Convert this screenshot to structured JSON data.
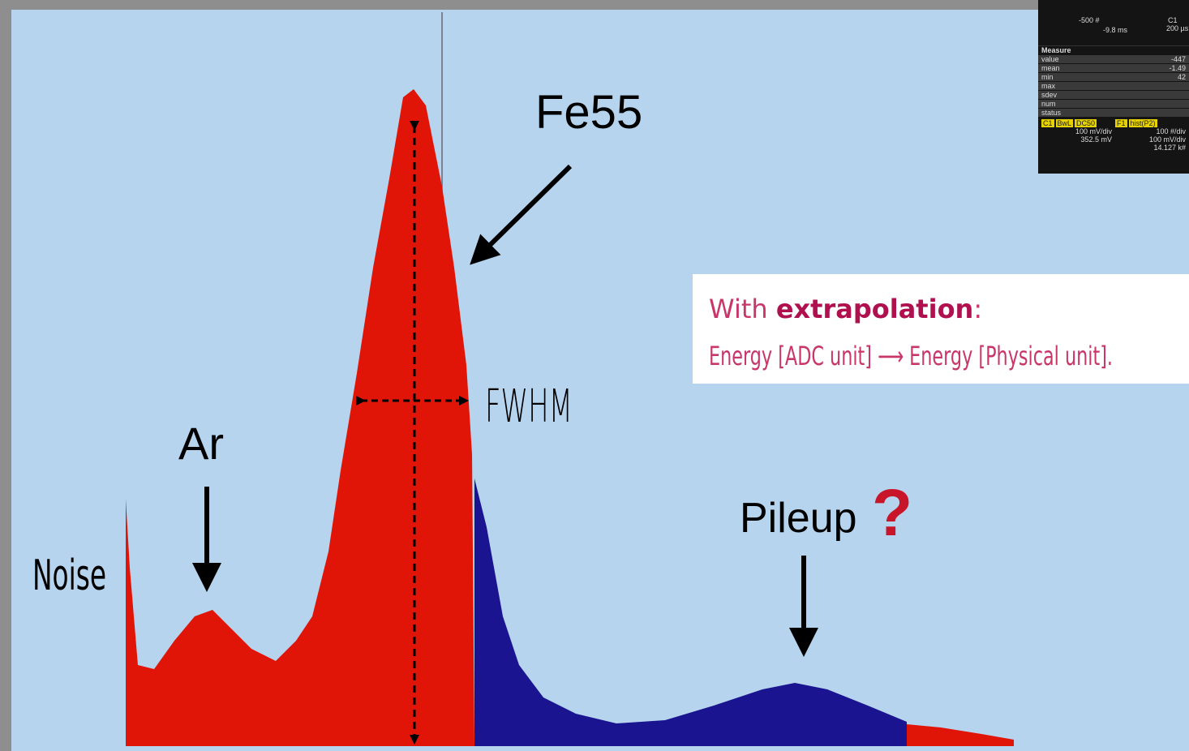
{
  "annotations": {
    "fe55": "Fe55",
    "fwhm": "FWHM",
    "ar": "Ar",
    "noise": "Noise",
    "pileup": "Pileup",
    "question": "?"
  },
  "note": {
    "prefix": "With",
    "emphasis": "extrapolation",
    "suffix": ":",
    "line2": "Energy [ADC unit] ⟶ Energy [Physical unit]."
  },
  "inset": {
    "axis": [
      "-500 #",
      "-9.8 ms",
      "C1",
      "200 µs"
    ],
    "measure_title": "Measure",
    "rows": [
      "value",
      "mean",
      "min",
      "max",
      "sdev",
      "num",
      "status"
    ],
    "readings": [
      "-447",
      "-1.49",
      "42"
    ],
    "channels": [
      {
        "tags": [
          "C1",
          "BwL",
          "DC50"
        ],
        "lines": [
          "100 mV/div",
          "352.5 mV"
        ]
      },
      {
        "tags": [
          "F1",
          "hist(P2)"
        ],
        "lines": [
          "100 #/div",
          "100 mV/div",
          "14.127 k#"
        ]
      }
    ]
  }
}
